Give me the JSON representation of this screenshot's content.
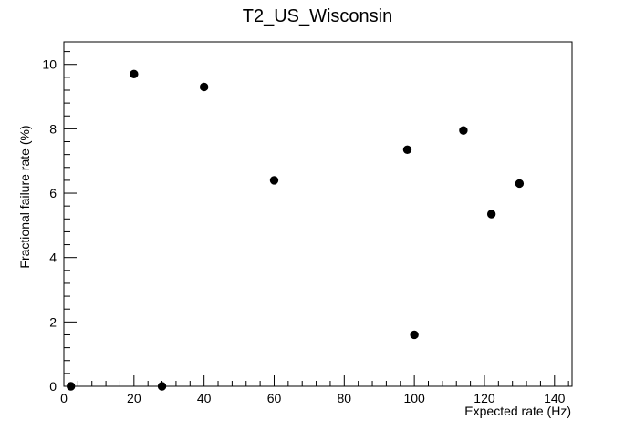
{
  "chart_data": {
    "type": "scatter",
    "title": "T2_US_Wisconsin",
    "xlabel": "Expected rate (Hz)",
    "ylabel": "Fractional failure rate (%)",
    "xlim": [
      0,
      145
    ],
    "ylim": [
      0,
      10.7
    ],
    "x_ticks": [
      0,
      20,
      40,
      60,
      80,
      100,
      120,
      140
    ],
    "y_ticks": [
      0,
      2,
      4,
      6,
      8,
      10
    ],
    "grid": false,
    "legend": "none",
    "marker_color": "#000000",
    "points": [
      {
        "x": 2,
        "y": 0
      },
      {
        "x": 20,
        "y": 9.7
      },
      {
        "x": 28,
        "y": 0
      },
      {
        "x": 40,
        "y": 9.3
      },
      {
        "x": 60,
        "y": 6.4
      },
      {
        "x": 98,
        "y": 7.35
      },
      {
        "x": 100,
        "y": 1.6
      },
      {
        "x": 114,
        "y": 7.95
      },
      {
        "x": 122,
        "y": 5.35
      },
      {
        "x": 130,
        "y": 6.3
      }
    ]
  }
}
